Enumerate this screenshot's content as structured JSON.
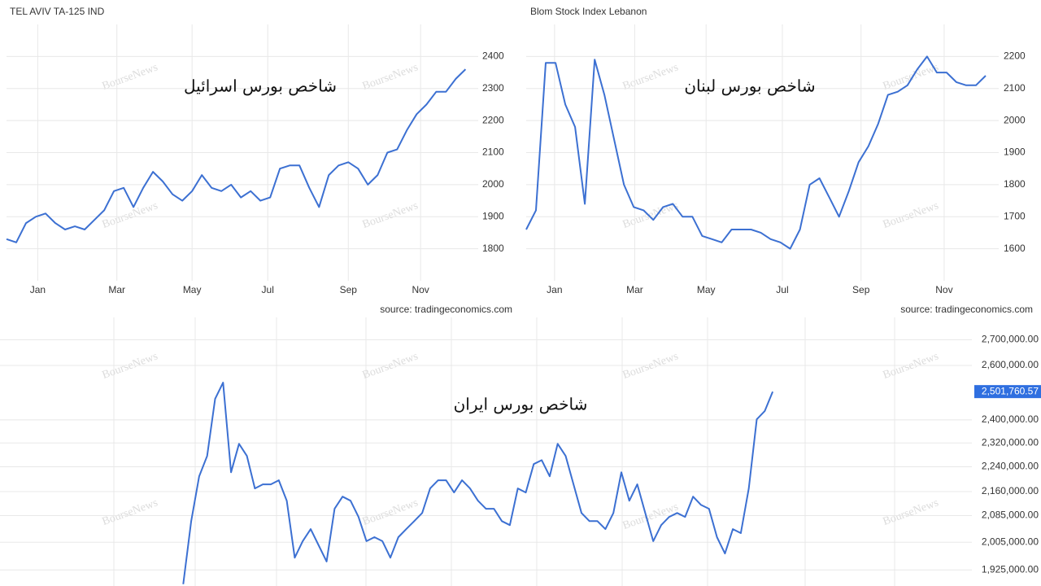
{
  "watermark": "BourseNews",
  "chart_data": [
    {
      "type": "line",
      "title": "TEL AVIV TA-125 IND",
      "annotation": "شاخص بورس اسرائیل",
      "source": "source: tradingeconomics.com",
      "color": "#3c70d2",
      "grid": true,
      "values": [
        1830,
        1820,
        1880,
        1900,
        1910,
        1880,
        1860,
        1870,
        1860,
        1890,
        1920,
        1980,
        1990,
        1930,
        1990,
        2040,
        2010,
        1970,
        1950,
        1980,
        2030,
        1990,
        1980,
        2000,
        1960,
        1980,
        1950,
        1960,
        2050,
        2060,
        2060,
        1990,
        1930,
        2030,
        2060,
        2070,
        2050,
        2000,
        2030,
        2100,
        2110,
        2170,
        2220,
        2250,
        2290,
        2290,
        2330,
        2360
      ],
      "xlim": [
        0,
        48.3
      ],
      "xticks": [
        {
          "value": 3.2,
          "label": "Jan"
        },
        {
          "value": 11.3,
          "label": "Mar"
        },
        {
          "value": 19,
          "label": "May"
        },
        {
          "value": 26.75,
          "label": "Jul"
        },
        {
          "value": 35,
          "label": "Sep"
        },
        {
          "value": 42.4,
          "label": "Nov"
        }
      ],
      "ylim": [
        1700,
        2500
      ],
      "yticks": [
        1800,
        1900,
        2000,
        2100,
        2200,
        2300,
        2400
      ]
    },
    {
      "type": "line",
      "title": "Blom Stock Index Lebanon",
      "annotation": "شاخص بورس لبنان",
      "source": "source: tradingeconomics.com",
      "color": "#3c70d2",
      "grid": true,
      "values": [
        1660,
        1720,
        2180,
        2180,
        2050,
        1980,
        1740,
        2190,
        2080,
        1940,
        1800,
        1730,
        1720,
        1690,
        1730,
        1740,
        1700,
        1700,
        1640,
        1630,
        1620,
        1660,
        1660,
        1660,
        1650,
        1630,
        1620,
        1600,
        1660,
        1800,
        1820,
        1760,
        1700,
        1780,
        1870,
        1920,
        1990,
        2080,
        2090,
        2110,
        2160,
        2200,
        2150,
        2150,
        2120,
        2110,
        2110,
        2140
      ],
      "xlim": [
        0,
        48.33
      ],
      "xticks": [
        {
          "value": 2.9,
          "label": "Jan"
        },
        {
          "value": 11.1,
          "label": "Mar"
        },
        {
          "value": 18.4,
          "label": "May"
        },
        {
          "value": 26.2,
          "label": "Jul"
        },
        {
          "value": 34.25,
          "label": "Sep"
        },
        {
          "value": 42.75,
          "label": "Nov"
        }
      ],
      "ylim": [
        1500,
        2300
      ],
      "yticks": [
        1600,
        1700,
        1800,
        1900,
        2000,
        2100,
        2200
      ]
    },
    {
      "type": "line",
      "annotation": "شاخص بورس ایران",
      "color": "#3c70d2",
      "grid": true,
      "log": true,
      "values": [
        1885000,
        2068000,
        2209000,
        2276000,
        2475000,
        2535000,
        2222000,
        2317000,
        2276000,
        2170000,
        2183000,
        2183000,
        2196000,
        2131000,
        1960000,
        2008000,
        2044000,
        1996000,
        1949000,
        2106000,
        2144000,
        2131000,
        2081000,
        2008000,
        2020000,
        2008000,
        1960000,
        2020000,
        2044000,
        2068000,
        2093000,
        2170000,
        2196000,
        2196000,
        2157000,
        2196000,
        2170000,
        2131000,
        2106000,
        2106000,
        2068000,
        2056000,
        2170000,
        2157000,
        2249000,
        2262000,
        2209000,
        2317000,
        2276000,
        2183000,
        2093000,
        2068000,
        2068000,
        2044000,
        2093000,
        2222000,
        2131000,
        2183000,
        2093000,
        2008000,
        2056000,
        2081000,
        2093000,
        2081000,
        2144000,
        2118000,
        2106000,
        2020000,
        1972000,
        2044000,
        2032000,
        2170000,
        2402000,
        2431000,
        2501760.57
      ],
      "xlim": [
        -23,
        99
      ],
      "last_value": {
        "value": 2501760.57,
        "label": "2,501,760.57"
      },
      "ylim": [
        1880000,
        2790000
      ],
      "yticks": [
        {
          "value": 1925000,
          "label": "1,925,000.00"
        },
        {
          "value": 2005000,
          "label": "2,005,000.00"
        },
        {
          "value": 2085000,
          "label": "2,085,000.00"
        },
        {
          "value": 2160000,
          "label": "2,160,000.00"
        },
        {
          "value": 2240000,
          "label": "2,240,000.00"
        },
        {
          "value": 2320000,
          "label": "2,320,000.00"
        },
        {
          "value": 2400000,
          "label": "2,400,000.00"
        },
        {
          "value": 2600000,
          "label": "2,600,000.00"
        },
        {
          "value": 2700000,
          "label": "2,700,000.00"
        }
      ]
    }
  ]
}
